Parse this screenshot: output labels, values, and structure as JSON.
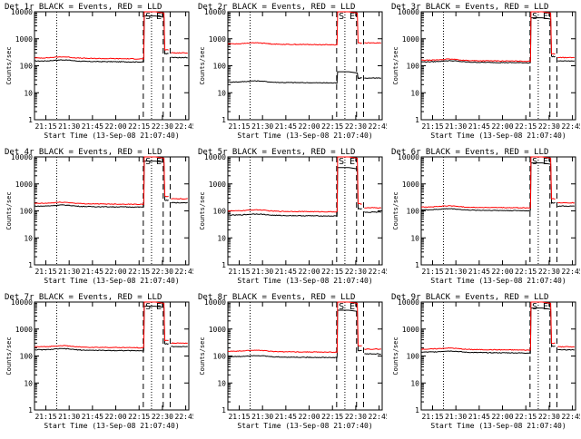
{
  "common": {
    "xlabel": "Start Time (13-Sep-08 21:07:40)",
    "ylabel": "Counts/sec",
    "x_tick_labels": [
      "21:15",
      "21:30",
      "21:45",
      "22:00",
      "22:15",
      "22:30",
      "22:45"
    ],
    "y_tick_labels": [
      "1",
      "10",
      "100",
      "1000",
      "10000"
    ],
    "marker_S": "S",
    "marker_E": "E",
    "colors": {
      "events": "#000000",
      "lld": "#ff0000",
      "axes": "#000000"
    }
  },
  "chart_data": [
    {
      "type": "line",
      "title": "Det 1r BLACK = Events, RED = LLD",
      "ylim": [
        1,
        10000
      ],
      "yscale": "log",
      "series": [
        {
          "name": "Events",
          "color": "#000000",
          "base": 150,
          "jump": 7000,
          "tail": 280,
          "tail_end": 200
        },
        {
          "name": "LLD",
          "color": "#ff0000",
          "base": 195,
          "jump": 10000,
          "tail": 380,
          "tail_end": 300
        }
      ]
    },
    {
      "type": "line",
      "title": "Det 2r BLACK = Events, RED = LLD",
      "ylim": [
        1,
        10000
      ],
      "yscale": "log",
      "series": [
        {
          "name": "Events",
          "color": "#000000",
          "base": 25,
          "jump": 60,
          "tail": 35,
          "tail_end": 35
        },
        {
          "name": "LLD",
          "color": "#ff0000",
          "base": 650,
          "jump": 10000,
          "tail": 700,
          "tail_end": 700
        }
      ]
    },
    {
      "type": "line",
      "title": "Det 3r BLACK = Events, RED = LLD",
      "ylim": [
        1,
        10000
      ],
      "yscale": "log",
      "series": [
        {
          "name": "Events",
          "color": "#000000",
          "base": 140,
          "jump": 6000,
          "tail": 220,
          "tail_end": 150
        },
        {
          "name": "LLD",
          "color": "#ff0000",
          "base": 160,
          "jump": 10000,
          "tail": 280,
          "tail_end": 200
        }
      ]
    },
    {
      "type": "line",
      "title": "Det 4r BLACK = Events, RED = LLD",
      "ylim": [
        1,
        10000
      ],
      "yscale": "log",
      "series": [
        {
          "name": "Events",
          "color": "#000000",
          "base": 150,
          "jump": 7000,
          "tail": 250,
          "tail_end": 200
        },
        {
          "name": "LLD",
          "color": "#ff0000",
          "base": 190,
          "jump": 10000,
          "tail": 350,
          "tail_end": 280
        }
      ]
    },
    {
      "type": "line",
      "title": "Det 5r BLACK = Events, RED = LLD",
      "ylim": [
        1,
        10000
      ],
      "yscale": "log",
      "series": [
        {
          "name": "Events",
          "color": "#000000",
          "base": 70,
          "jump": 4000,
          "tail": 120,
          "tail_end": 90
        },
        {
          "name": "LLD",
          "color": "#ff0000",
          "base": 100,
          "jump": 10000,
          "tail": 180,
          "tail_end": 130
        }
      ]
    },
    {
      "type": "line",
      "title": "Det 6r BLACK = Events, RED = LLD",
      "ylim": [
        1,
        10000
      ],
      "yscale": "log",
      "series": [
        {
          "name": "Events",
          "color": "#000000",
          "base": 110,
          "jump": 6000,
          "tail": 200,
          "tail_end": 150
        },
        {
          "name": "LLD",
          "color": "#ff0000",
          "base": 140,
          "jump": 10000,
          "tail": 280,
          "tail_end": 200
        }
      ]
    },
    {
      "type": "line",
      "title": "Det 7r BLACK = Events, RED = LLD",
      "ylim": [
        1,
        10000
      ],
      "yscale": "log",
      "series": [
        {
          "name": "Events",
          "color": "#000000",
          "base": 170,
          "jump": 7000,
          "tail": 280,
          "tail_end": 220
        },
        {
          "name": "LLD",
          "color": "#ff0000",
          "base": 220,
          "jump": 10000,
          "tail": 380,
          "tail_end": 300
        }
      ]
    },
    {
      "type": "line",
      "title": "Det 8r BLACK = Events, RED = LLD",
      "ylim": [
        1,
        10000
      ],
      "yscale": "log",
      "series": [
        {
          "name": "Events",
          "color": "#000000",
          "base": 95,
          "jump": 5000,
          "tail": 160,
          "tail_end": 120
        },
        {
          "name": "LLD",
          "color": "#ff0000",
          "base": 150,
          "jump": 10000,
          "tail": 240,
          "tail_end": 180
        }
      ]
    },
    {
      "type": "line",
      "title": "Det 9r BLACK = Events, RED = LLD",
      "ylim": [
        1,
        10000
      ],
      "yscale": "log",
      "series": [
        {
          "name": "Events",
          "color": "#000000",
          "base": 140,
          "jump": 6000,
          "tail": 230,
          "tail_end": 170
        },
        {
          "name": "LLD",
          "color": "#ff0000",
          "base": 180,
          "jump": 10000,
          "tail": 300,
          "tail_end": 220
        }
      ]
    }
  ]
}
